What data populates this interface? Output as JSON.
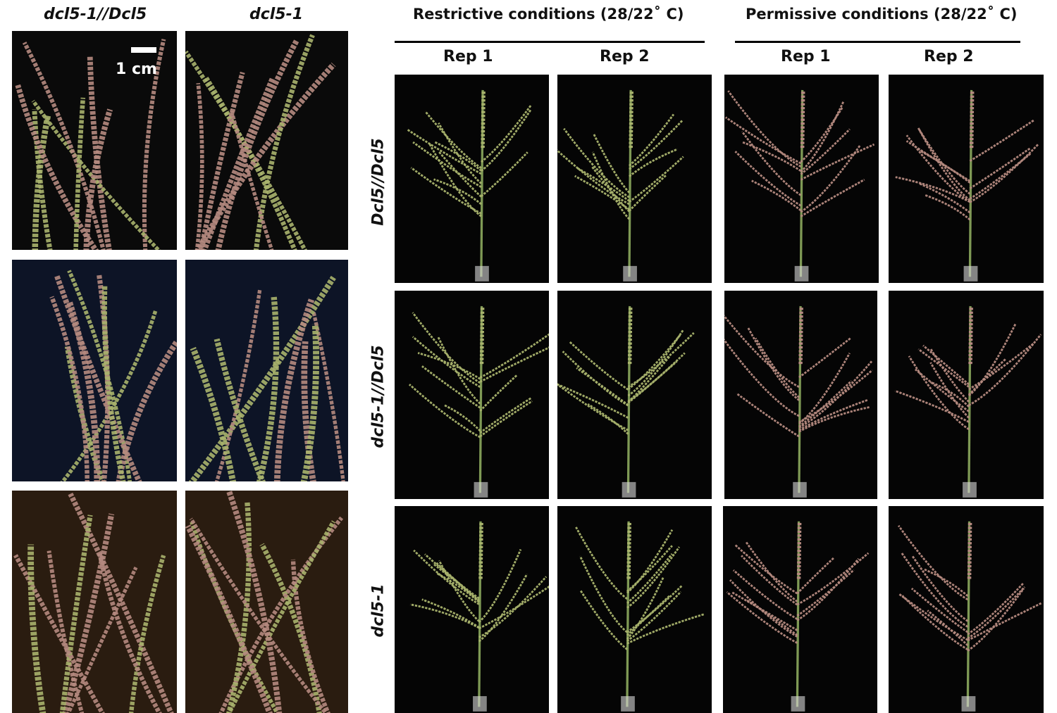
{
  "left_panel": {
    "col_headers": [
      "dcl5-1//Dcl5",
      "dcl5-1"
    ],
    "scale_bar_label": "1 cm"
  },
  "right_panel": {
    "group_headers": [
      "Restrictive conditions (28/22˚ C)",
      "Permissive conditions (28/22˚ C)"
    ],
    "rep_headers": [
      "Rep 1",
      "Rep 2",
      "Rep 1",
      "Rep 2"
    ],
    "row_labels": [
      "Dcl5//Dcl5",
      "dcl5-1//Dcl5",
      "dcl5-1"
    ]
  },
  "colors": {
    "photo_background": "#050505",
    "stem": "#7f9a55",
    "tassel_green": "#a9b36d",
    "tassel_pink": "#b58a80"
  }
}
